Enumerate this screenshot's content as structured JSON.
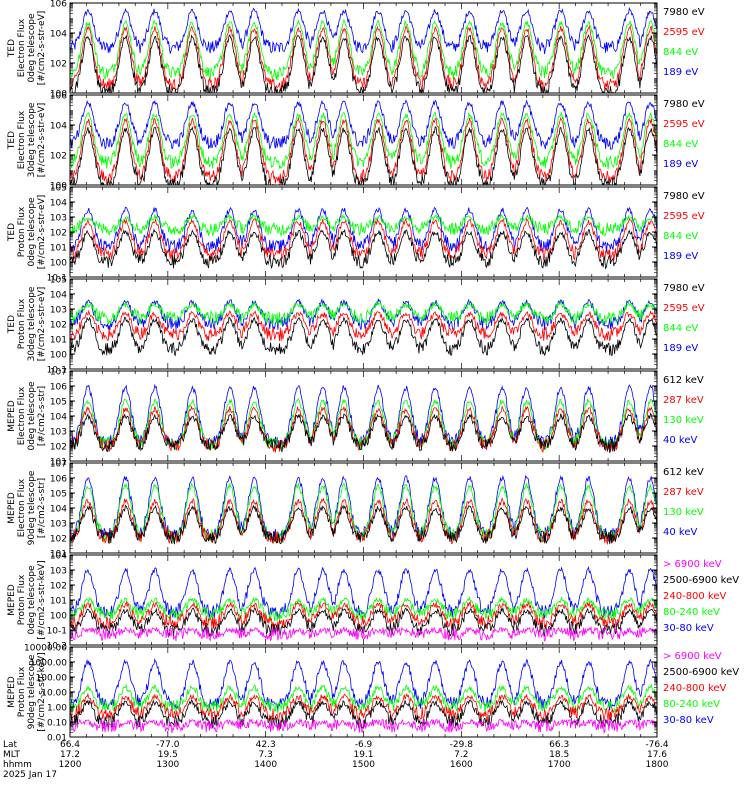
{
  "colors": {
    "blue": "#0000ff",
    "red": "#ff0000",
    "green": "#00ff00",
    "black": "#000000",
    "magenta": "#ff00ff",
    "frame": "#000000"
  },
  "chart_data": [
    {
      "type": "line",
      "ylog": true,
      "ylim": [
        1,
        1000000
      ],
      "ylabel_lines": [
        "TED",
        "Electron Flux",
        "0deg telescope",
        "[#/cm2-s-str-eV]"
      ],
      "yticks": [
        {
          "v": 1,
          "label": "10^0"
        },
        {
          "v": 100,
          "label": "10^2"
        },
        {
          "v": 10000,
          "label": "10^4"
        },
        {
          "v": 1000000,
          "label": "10^6"
        }
      ],
      "legend": [
        {
          "label": "7980 eV",
          "color": "black"
        },
        {
          "label": "2595 eV",
          "color": "red"
        },
        {
          "label": "844 eV",
          "color": "green"
        },
        {
          "label": "189 eV",
          "color": "blue"
        }
      ],
      "series_levels": [
        {
          "name": "189 eV",
          "color": "blue",
          "base": 1000,
          "peak": 300000
        },
        {
          "name": "844 eV",
          "color": "green",
          "base": 20,
          "peak": 50000
        },
        {
          "name": "2595 eV",
          "color": "red",
          "base": 3,
          "peak": 20000
        },
        {
          "name": "7980 eV",
          "color": "black",
          "base": 1,
          "peak": 5000
        }
      ]
    },
    {
      "type": "line",
      "ylog": true,
      "ylim": [
        1,
        1000000
      ],
      "ylabel_lines": [
        "TED",
        "Electron Flux",
        "30deg telescope",
        "[#/cm2-s-str-eV]"
      ],
      "yticks": [
        {
          "v": 1,
          "label": "10^0"
        },
        {
          "v": 100,
          "label": "10^2"
        },
        {
          "v": 10000,
          "label": "10^4"
        },
        {
          "v": 1000000,
          "label": "10^6"
        }
      ],
      "legend": [
        {
          "label": "7980 eV",
          "color": "black"
        },
        {
          "label": "2595 eV",
          "color": "red"
        },
        {
          "label": "844 eV",
          "color": "green"
        },
        {
          "label": "189 eV",
          "color": "blue"
        }
      ],
      "series_levels": [
        {
          "name": "189 eV",
          "color": "blue",
          "base": 600,
          "peak": 300000
        },
        {
          "name": "844 eV",
          "color": "green",
          "base": 30,
          "peak": 50000
        },
        {
          "name": "2595 eV",
          "color": "red",
          "base": 3,
          "peak": 20000
        },
        {
          "name": "7980 eV",
          "color": "black",
          "base": 1,
          "peak": 5000
        }
      ]
    },
    {
      "type": "line",
      "ylog": true,
      "ylim": [
        0.1,
        100000
      ],
      "ylabel_lines": [
        "TED",
        "Proton Flux",
        "0deg telescope",
        "[#/cm2-s-str-eV]"
      ],
      "yticks": [
        {
          "v": 0.1,
          "label": "10^-1"
        },
        {
          "v": 1,
          "label": "10^0"
        },
        {
          "v": 10,
          "label": "10^1"
        },
        {
          "v": 100,
          "label": "10^2"
        },
        {
          "v": 1000,
          "label": "10^3"
        },
        {
          "v": 10000,
          "label": "10^4"
        },
        {
          "v": 100000,
          "label": "10^5"
        }
      ],
      "legend": [
        {
          "label": "7980 eV",
          "color": "black"
        },
        {
          "label": "2595 eV",
          "color": "red"
        },
        {
          "label": "844 eV",
          "color": "green"
        },
        {
          "label": "189 eV",
          "color": "blue"
        }
      ],
      "series_levels": [
        {
          "name": "189 eV",
          "color": "blue",
          "base": 10,
          "peak": 3000
        },
        {
          "name": "844 eV",
          "color": "green",
          "base": 150,
          "peak": 1000
        },
        {
          "name": "2595 eV",
          "color": "red",
          "base": 3,
          "peak": 500
        },
        {
          "name": "7980 eV",
          "color": "black",
          "base": 1,
          "peak": 100
        }
      ]
    },
    {
      "type": "line",
      "ylog": true,
      "ylim": [
        0.1,
        100000
      ],
      "ylabel_lines": [
        "TED",
        "Proton Flux",
        "30deg telescope",
        "[#/cm2-s-str-eV]"
      ],
      "yticks": [
        {
          "v": 0.1,
          "label": "10^-1"
        },
        {
          "v": 1,
          "label": "10^0"
        },
        {
          "v": 10,
          "label": "10^1"
        },
        {
          "v": 100,
          "label": "10^2"
        },
        {
          "v": 1000,
          "label": "10^3"
        },
        {
          "v": 10000,
          "label": "10^4"
        },
        {
          "v": 100000,
          "label": "10^5"
        }
      ],
      "legend": [
        {
          "label": "7980 eV",
          "color": "black"
        },
        {
          "label": "2595 eV",
          "color": "red"
        },
        {
          "label": "844 eV",
          "color": "green"
        },
        {
          "label": "189 eV",
          "color": "blue"
        }
      ],
      "series_levels": [
        {
          "name": "189 eV",
          "color": "blue",
          "base": 100,
          "peak": 3000
        },
        {
          "name": "844 eV",
          "color": "green",
          "base": 250,
          "peak": 2000
        },
        {
          "name": "2595 eV",
          "color": "red",
          "base": 20,
          "peak": 500
        },
        {
          "name": "7980 eV",
          "color": "black",
          "base": 2,
          "peak": 200
        }
      ]
    },
    {
      "type": "line",
      "ylog": true,
      "ylim": [
        10,
        10000000
      ],
      "ylabel_lines": [
        "MEPED",
        "Electron Flux",
        "0deg telescope",
        "[#/cm2-s-str]"
      ],
      "yticks": [
        {
          "v": 10,
          "label": "10^1"
        },
        {
          "v": 100,
          "label": "10^2"
        },
        {
          "v": 1000,
          "label": "10^3"
        },
        {
          "v": 10000,
          "label": "10^4"
        },
        {
          "v": 100000,
          "label": "10^5"
        },
        {
          "v": 1000000,
          "label": "10^6"
        },
        {
          "v": 10000000,
          "label": "10^7"
        }
      ],
      "legend": [
        {
          "label": "612 keV",
          "color": "black"
        },
        {
          "label": "287 keV",
          "color": "red"
        },
        {
          "label": "130 keV",
          "color": "green"
        },
        {
          "label": "40 keV",
          "color": "blue"
        }
      ],
      "series_levels": [
        {
          "name": "40 keV",
          "color": "blue",
          "base": 150,
          "peak": 800000
        },
        {
          "name": "130 keV",
          "color": "green",
          "base": 120,
          "peak": 100000
        },
        {
          "name": "287 keV",
          "color": "red",
          "base": 100,
          "peak": 30000
        },
        {
          "name": "612 keV",
          "color": "black",
          "base": 100,
          "peak": 10000
        }
      ]
    },
    {
      "type": "line",
      "ylog": true,
      "ylim": [
        10,
        10000000
      ],
      "ylabel_lines": [
        "MEPED",
        "Electron Flux",
        "90deg telescope",
        "[#/cm2-s-str]"
      ],
      "yticks": [
        {
          "v": 10,
          "label": "10^1"
        },
        {
          "v": 100,
          "label": "10^2"
        },
        {
          "v": 1000,
          "label": "10^3"
        },
        {
          "v": 10000,
          "label": "10^4"
        },
        {
          "v": 100000,
          "label": "10^5"
        },
        {
          "v": 1000000,
          "label": "10^6"
        },
        {
          "v": 10000000,
          "label": "10^7"
        }
      ],
      "legend": [
        {
          "label": "612 keV",
          "color": "black"
        },
        {
          "label": "287 keV",
          "color": "red"
        },
        {
          "label": "130 keV",
          "color": "green"
        },
        {
          "label": "40 keV",
          "color": "blue"
        }
      ],
      "series_levels": [
        {
          "name": "40 keV",
          "color": "blue",
          "base": 150,
          "peak": 1000000
        },
        {
          "name": "130 keV",
          "color": "green",
          "base": 120,
          "peak": 300000
        },
        {
          "name": "287 keV",
          "color": "red",
          "base": 100,
          "peak": 30000
        },
        {
          "name": "612 keV",
          "color": "black",
          "base": 100,
          "peak": 10000
        }
      ]
    },
    {
      "type": "line",
      "ylog": true,
      "ylim": [
        0.01,
        10000
      ],
      "ylabel_lines": [
        "MEPED",
        "Proton Flux",
        "0deg telescope",
        "[#/cm2-s-str-keV]"
      ],
      "yticks": [
        {
          "v": 0.01,
          "label": "10^-2"
        },
        {
          "v": 0.1,
          "label": "10^-1"
        },
        {
          "v": 1,
          "label": "10^0"
        },
        {
          "v": 10,
          "label": "10^1"
        },
        {
          "v": 100,
          "label": "10^2"
        },
        {
          "v": 1000,
          "label": "10^3"
        },
        {
          "v": 10000,
          "label": "10^4"
        }
      ],
      "legend": [
        {
          "label": "> 6900 keV",
          "color": "magenta"
        },
        {
          "label": "2500-6900 keV",
          "color": "black"
        },
        {
          "label": "240-800 keV",
          "color": "red"
        },
        {
          "label": "80-240 keV",
          "color": "green"
        },
        {
          "label": "30-80 keV",
          "color": "blue"
        }
      ],
      "series_levels": [
        {
          "name": "30-80 keV",
          "color": "blue",
          "base": 1.5,
          "peak": 1000
        },
        {
          "name": "80-240 keV",
          "color": "green",
          "base": 1,
          "peak": 10
        },
        {
          "name": "240-800 keV",
          "color": "red",
          "base": 0.3,
          "peak": 5
        },
        {
          "name": "2500-6900 keV",
          "color": "black",
          "base": 0.1,
          "peak": 2
        },
        {
          "name": "> 6900 keV",
          "color": "magenta",
          "base": 0.05,
          "peak": 0.1
        }
      ]
    },
    {
      "type": "line",
      "ylog": true,
      "ylim": [
        0.01,
        10000
      ],
      "ylabel_lines": [
        "MEPED",
        "Proton Flux",
        "90deg telescope",
        "[#/cm2-s-str-keV]"
      ],
      "yticks": [
        {
          "v": 0.01,
          "label": "0.01"
        },
        {
          "v": 0.1,
          "label": "0.10"
        },
        {
          "v": 1,
          "label": "1.00"
        },
        {
          "v": 10,
          "label": "10.00"
        },
        {
          "v": 100,
          "label": "100.00"
        },
        {
          "v": 1000,
          "label": "1000.00"
        },
        {
          "v": 10000,
          "label": "10000.00"
        }
      ],
      "legend": [
        {
          "label": "> 6900 keV",
          "color": "magenta"
        },
        {
          "label": "2500-6900 keV",
          "color": "black"
        },
        {
          "label": "240-800 keV",
          "color": "red"
        },
        {
          "label": "80-240 keV",
          "color": "green"
        },
        {
          "label": "30-80 keV",
          "color": "blue"
        }
      ],
      "series_levels": [
        {
          "name": "30-80 keV",
          "color": "blue",
          "base": 1.5,
          "peak": 1000
        },
        {
          "name": "80-240 keV",
          "color": "green",
          "base": 1,
          "peak": 20
        },
        {
          "name": "240-800 keV",
          "color": "red",
          "base": 0.3,
          "peak": 5
        },
        {
          "name": "2500-6900 keV",
          "color": "black",
          "base": 0.1,
          "peak": 2
        },
        {
          "name": "> 6900 keV",
          "color": "magenta",
          "base": 0.05,
          "peak": 0.1
        }
      ]
    }
  ],
  "xaxis": {
    "range_minutes": [
      0,
      360
    ],
    "row_labels": [
      "Lat",
      "MLT",
      "hhmm"
    ],
    "ticks": [
      {
        "t": 0,
        "lat": "66.4",
        "mlt": "17.2",
        "hhmm": "1200"
      },
      {
        "t": 60,
        "lat": "-77.0",
        "mlt": "19.5",
        "hhmm": "1300"
      },
      {
        "t": 120,
        "lat": "42.3",
        "mlt": "7.3",
        "hhmm": "1400"
      },
      {
        "t": 180,
        "lat": "-6.9",
        "mlt": "19.1",
        "hhmm": "1500"
      },
      {
        "t": 240,
        "lat": "-29.8",
        "mlt": "7.2",
        "hhmm": "1600"
      },
      {
        "t": 300,
        "lat": "66.3",
        "mlt": "18.5",
        "hhmm": "1700"
      },
      {
        "t": 360,
        "lat": "-76.4",
        "mlt": "17.6",
        "hhmm": "1800"
      }
    ],
    "date_label": "2025 Jan 17"
  },
  "event_times_minutes": [
    11,
    34,
    52,
    75,
    98,
    113,
    140,
    155,
    168,
    189,
    206,
    224,
    245,
    265,
    280,
    301,
    318,
    343,
    356
  ]
}
